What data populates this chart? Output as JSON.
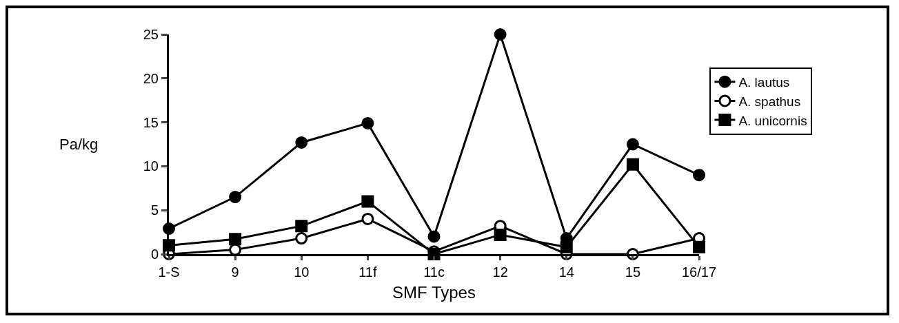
{
  "chart_data": {
    "type": "line",
    "xlabel": "SMF Types",
    "ylabel": "Pa/kg",
    "categories": [
      "1-S",
      "9",
      "10",
      "11f",
      "11c",
      "12",
      "14",
      "15",
      "16/17"
    ],
    "series": [
      {
        "name": "A. lautus",
        "color": "#000000",
        "marker": "circle",
        "values": [
          2.9,
          6.5,
          12.7,
          14.9,
          2.0,
          25,
          1.8,
          12.5,
          9.0
        ]
      },
      {
        "name": "A. spathus",
        "color": "#000000",
        "marker": "circle-open",
        "values": [
          0,
          0.5,
          1.8,
          4.0,
          0.3,
          3.2,
          0,
          0,
          1.8
        ]
      },
      {
        "name": "A. unicornis",
        "color": "#000000",
        "marker": "square",
        "values": [
          1.0,
          1.7,
          3.2,
          6.0,
          0,
          2.2,
          0.8,
          10.2,
          0.8
        ]
      }
    ],
    "ylim": [
      0,
      25
    ],
    "yticks": [
      0,
      5,
      10,
      15,
      20,
      25
    ],
    "grid": false,
    "legend": "right",
    "line_style": "solid"
  }
}
